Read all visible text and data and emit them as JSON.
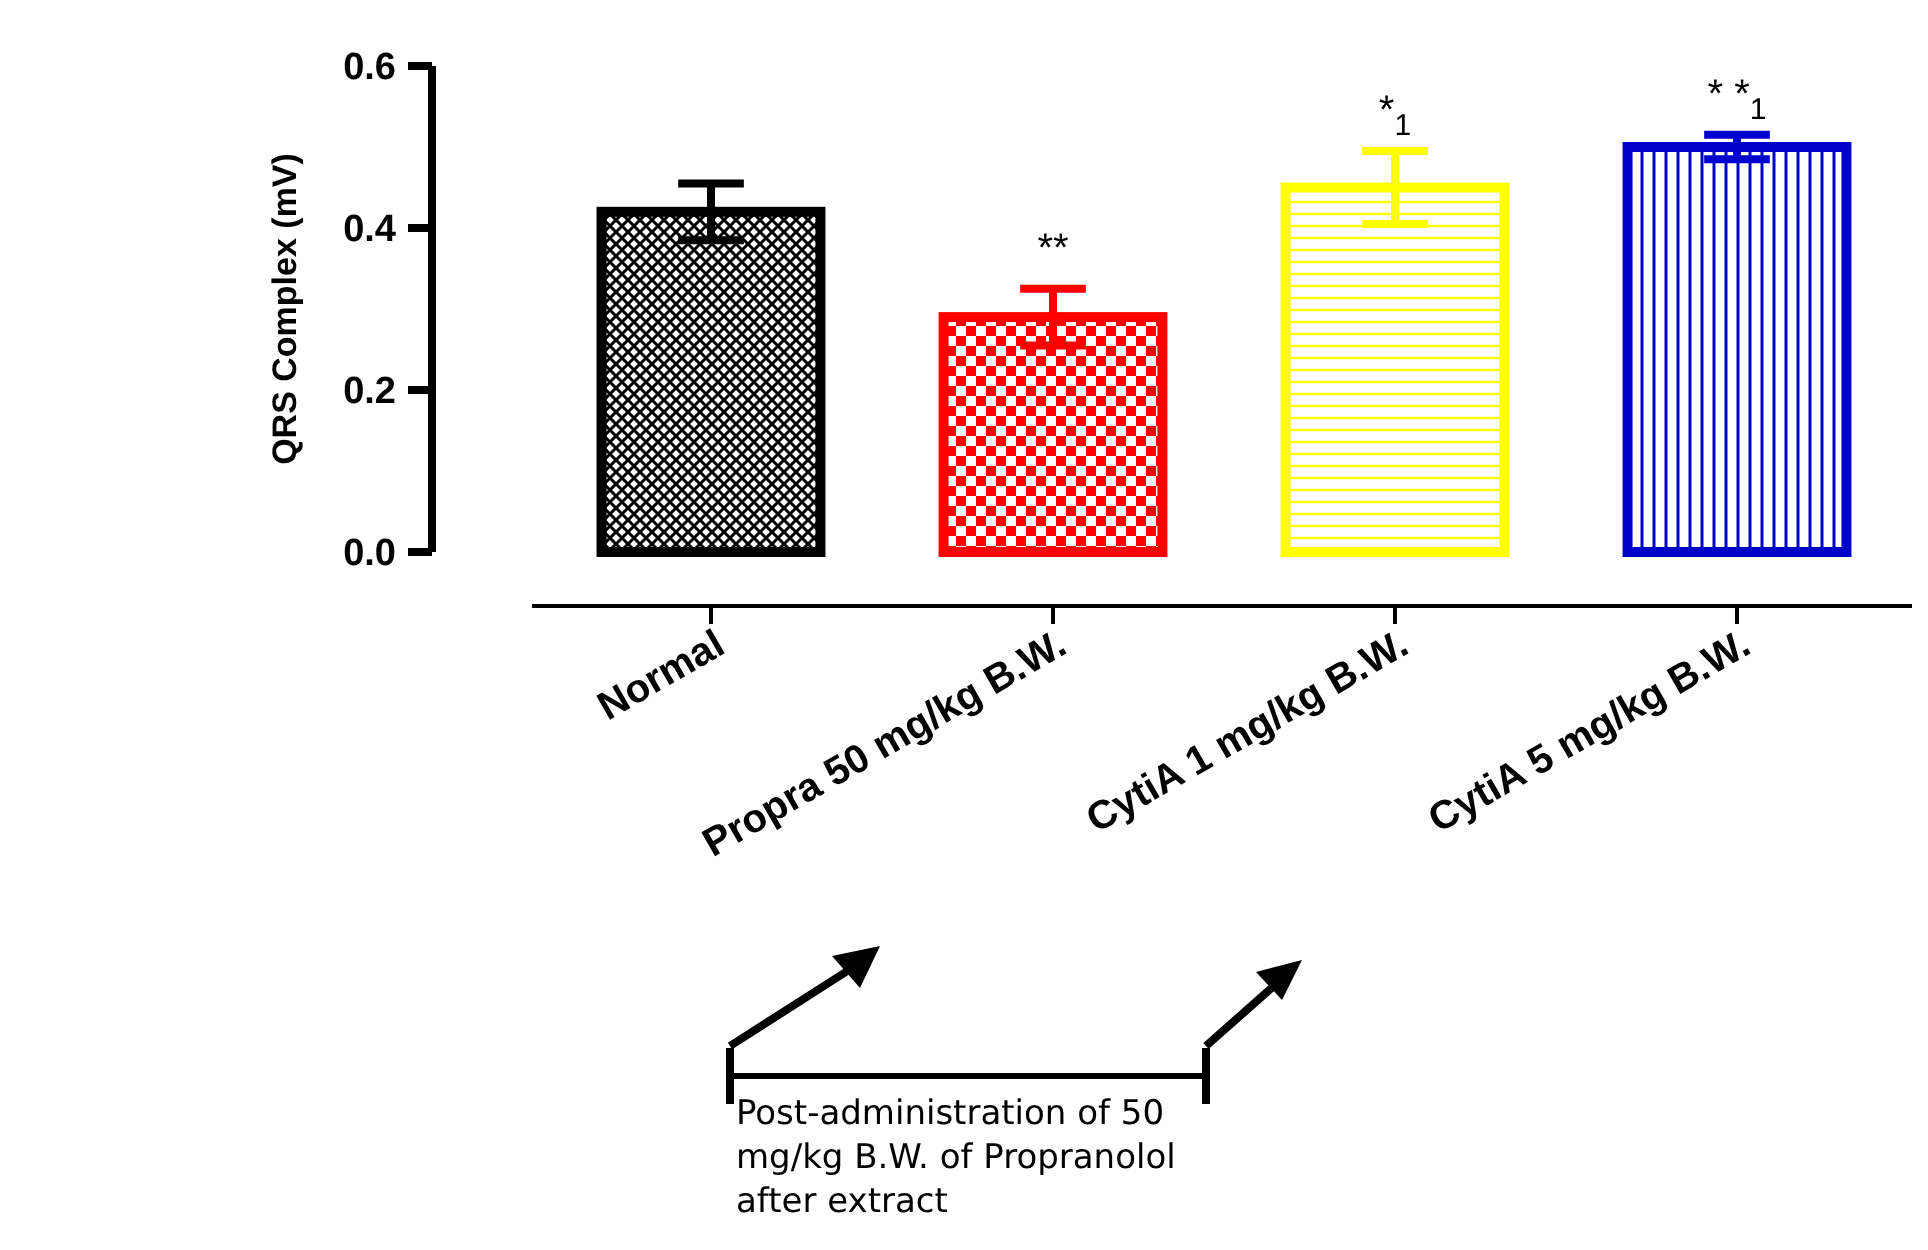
{
  "chart_data": {
    "type": "bar",
    "ylabel": "QRS Complex  (mV)",
    "categories": [
      "Normal",
      "Propra 50 mg/kg B.W.",
      "CytiA 1 mg/kg B.W.",
      "CytiA 5 mg/kg B.W."
    ],
    "values": [
      0.42,
      0.29,
      0.45,
      0.5
    ],
    "errors": [
      0.035,
      0.035,
      0.045,
      0.015
    ],
    "colors": [
      "#000000",
      "#ff0000",
      "#ffff00",
      "#0000cc"
    ],
    "ylim": [
      0,
      0.6
    ],
    "yticks": [
      {
        "value": 0,
        "label": "0.0"
      },
      {
        "value": 0.2,
        "label": "0.2"
      },
      {
        "value": 0.4,
        "label": "0.4"
      },
      {
        "value": 0.6,
        "label": "0.6"
      }
    ],
    "annotations": [
      {
        "text": "**",
        "x": "Propra 50 mg/kg B.W.",
        "y": 0.325
      },
      {
        "text": "*$_{1}$",
        "x": "CytiA 1 mg/kg B.W.",
        "y": 0.495
      },
      {
        "text": "* *$_{1}$",
        "x": "CytiA 5 mg/kg B.W.",
        "y": 0.515
      },
      "Post-administration of 50 mg/kg B.W. of Propranolol after extract"
    ]
  }
}
